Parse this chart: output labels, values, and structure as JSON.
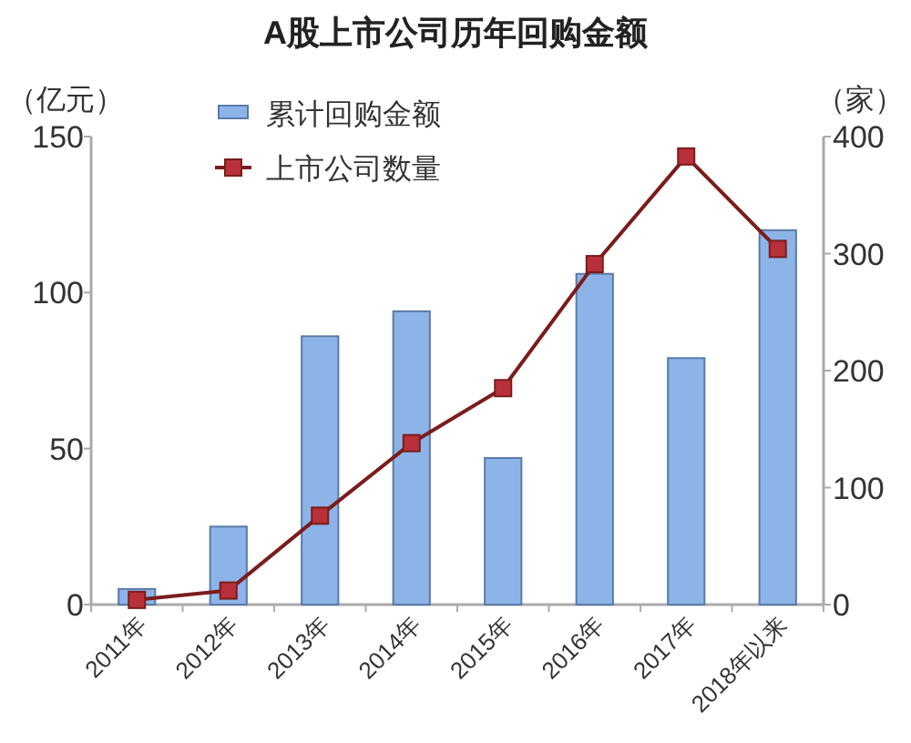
{
  "chart_data": {
    "type": "bar",
    "title": "A股上市公司历年回购金额",
    "ylabel": "（亿元）",
    "y2label": "（家）",
    "categories": [
      "2011年",
      "2012年",
      "2013年",
      "2014年",
      "2015年",
      "2016年",
      "2017年",
      "2018年以来"
    ],
    "series": [
      {
        "name": "累计回购金额",
        "color": "#8db4e8",
        "values": [
          5,
          25,
          86,
          94,
          47,
          106,
          79,
          120
        ]
      },
      {
        "name": "上市公司数量",
        "type": "line",
        "axis": "y2",
        "color": "#7b1c1c",
        "values": [
          4,
          12,
          76,
          138,
          185,
          291,
          383,
          304
        ]
      }
    ],
    "ylim": [
      0,
      150
    ],
    "yticks": [
      0,
      50,
      100,
      150
    ],
    "y2lim": [
      0,
      400
    ],
    "y2ticks": [
      0,
      100,
      200,
      300,
      400
    ],
    "legend": "top left",
    "marker": "square"
  }
}
